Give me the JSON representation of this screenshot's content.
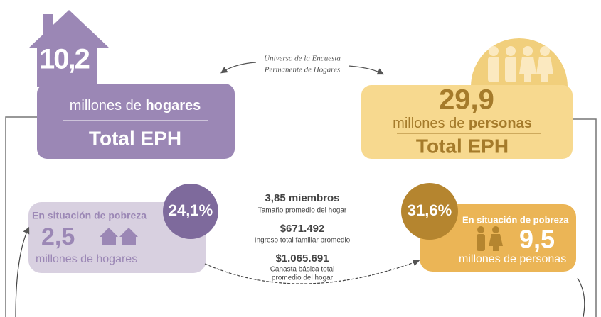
{
  "households": {
    "value": "10,2",
    "unit": "millones de",
    "unit_bold": "hogares",
    "total": "Total EPH"
  },
  "note": {
    "lines": [
      "Universo de la Encuesta",
      "Permanente de Hogares"
    ]
  },
  "persons": {
    "value": "29,9",
    "unit": "millones de",
    "unit_bold": "personas",
    "total": "Total EPH"
  },
  "poor_households": {
    "label": "En situación de pobreza",
    "value": "2,5",
    "unit": "millones de hogares",
    "percent": "24,1%"
  },
  "stats": [
    {
      "value": "3,85 miembros",
      "lines": [
        "Tamaño promedio del hogar"
      ]
    },
    {
      "value": "$671.492",
      "lines": [
        "Ingreso total familiar promedio"
      ]
    },
    {
      "value": "$1.065.691",
      "lines": [
        "Canasta básica total",
        "promedio del hogar"
      ]
    }
  ],
  "poor_persons": {
    "label": "En situación de pobreza",
    "value": "9,5",
    "unit": "millones de personas",
    "percent": "31,6%"
  }
}
